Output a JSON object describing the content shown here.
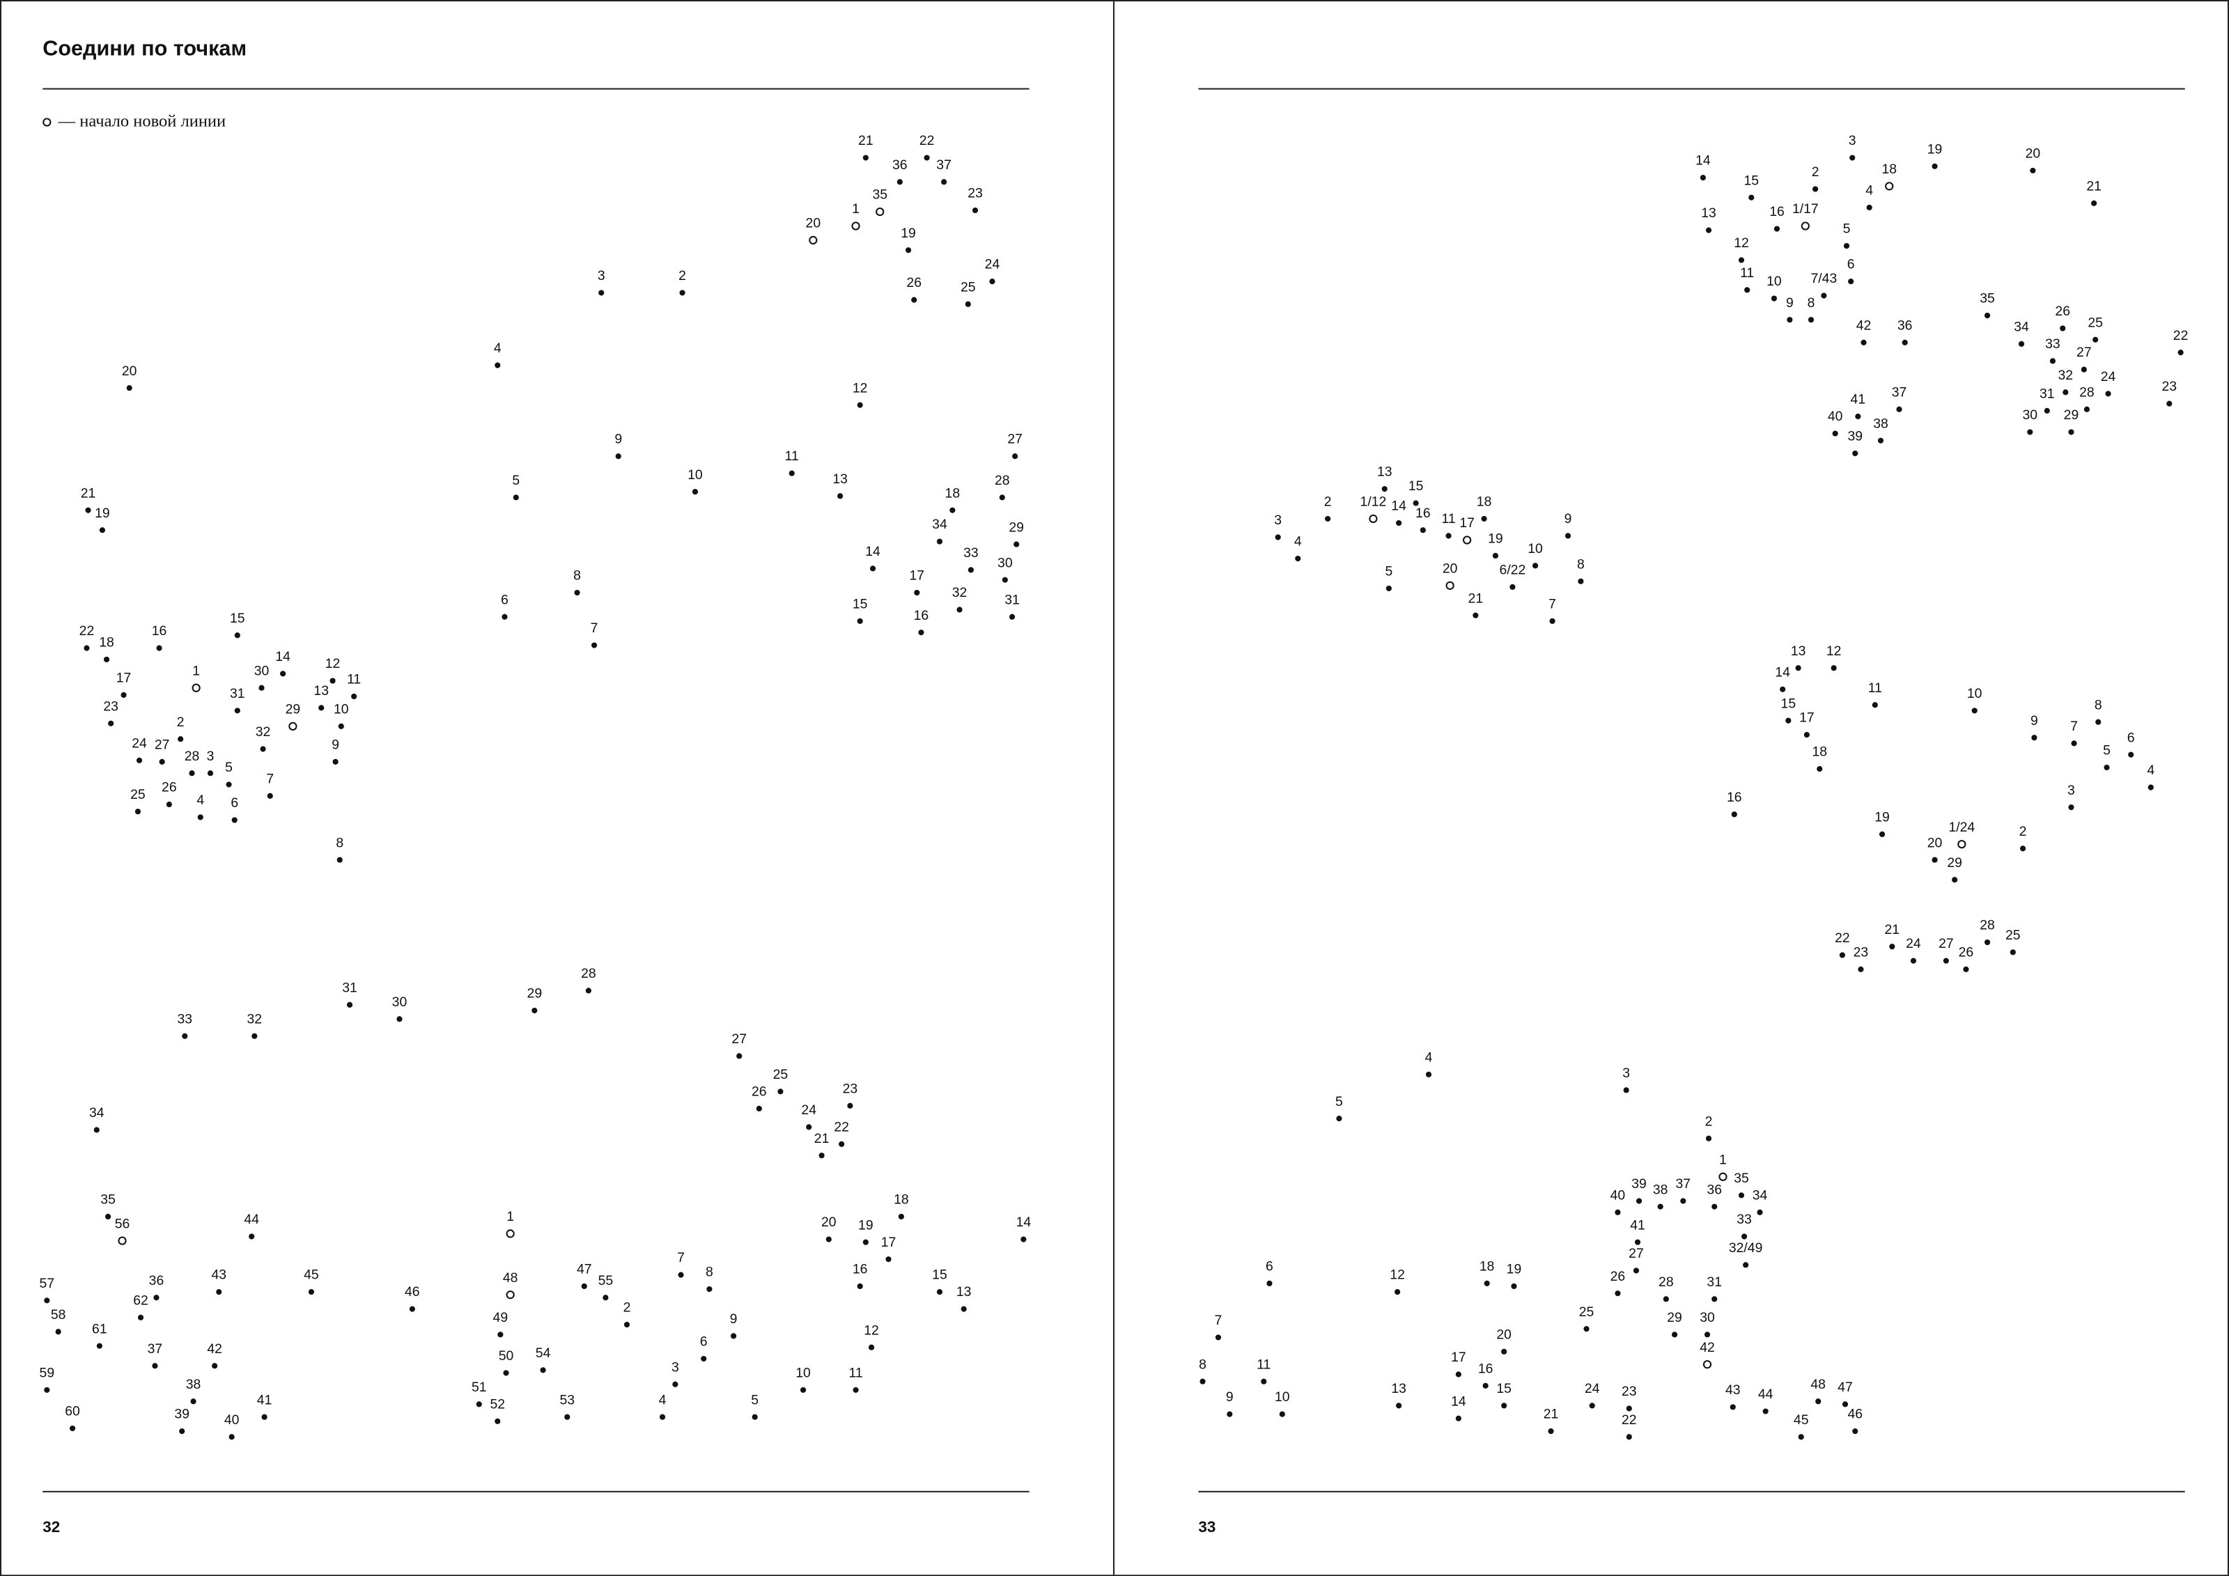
{
  "title": "Соедини по точкам",
  "legend": {
    "icon": "open-circle-icon",
    "text": "— начало новой линии"
  },
  "pages": {
    "left": "32",
    "right": "33"
  },
  "figures": [
    {
      "dots": [
        "21",
        "22",
        "36",
        "37",
        "35",
        "1",
        "20",
        "23",
        "19",
        "26",
        "25",
        "24",
        "3",
        "2",
        "4",
        "9",
        "10",
        "11",
        "5",
        "12",
        "13",
        "8",
        "6",
        "7",
        "14",
        "15",
        "16",
        "17",
        "18",
        "34",
        "33",
        "32",
        "27",
        "28",
        "29",
        "30",
        "31"
      ]
    },
    {
      "dots": [
        "20",
        "21",
        "19",
        "22",
        "18",
        "16",
        "15",
        "17",
        "1",
        "30",
        "14",
        "12",
        "11",
        "13",
        "31",
        "29",
        "10",
        "23",
        "2",
        "32",
        "9",
        "24",
        "27",
        "28",
        "3",
        "5",
        "7",
        "25",
        "26",
        "4",
        "6",
        "8"
      ]
    },
    {
      "dots": [
        "33",
        "32",
        "31",
        "30",
        "29",
        "28",
        "34",
        "35",
        "56",
        "44",
        "57",
        "36",
        "43",
        "45",
        "46",
        "62",
        "58",
        "61",
        "37",
        "42",
        "59",
        "38",
        "41",
        "60",
        "39",
        "40"
      ]
    },
    {
      "dots": [
        "27",
        "25",
        "26",
        "23",
        "24",
        "22",
        "21",
        "1",
        "20",
        "19",
        "18",
        "17",
        "14",
        "48",
        "47",
        "55",
        "16",
        "15",
        "13",
        "2",
        "49",
        "7",
        "8",
        "9",
        "12",
        "50",
        "54",
        "6",
        "3",
        "10",
        "11",
        "51",
        "52",
        "53",
        "4",
        "5"
      ]
    },
    {
      "dots": [
        "14",
        "3",
        "19",
        "20",
        "15",
        "2",
        "18",
        "21",
        "4",
        "16",
        "1/17",
        "13",
        "5",
        "12",
        "6",
        "11",
        "10",
        "7/43",
        "9",
        "8",
        "42",
        "36",
        "35",
        "26",
        "25",
        "34",
        "33",
        "22",
        "27",
        "32",
        "24",
        "23",
        "31",
        "28",
        "41",
        "37",
        "40",
        "38",
        "39",
        "30",
        "29"
      ]
    },
    {
      "dots": [
        "13",
        "15",
        "2",
        "1/12",
        "14",
        "16",
        "11",
        "17",
        "18",
        "3",
        "19",
        "9",
        "4",
        "10",
        "8",
        "5",
        "20",
        "6/22",
        "21",
        "7"
      ]
    },
    {
      "dots": [
        "13",
        "12",
        "14",
        "11",
        "10",
        "15",
        "17",
        "8",
        "9",
        "7",
        "6",
        "5",
        "18",
        "4",
        "3",
        "16",
        "19",
        "1/24",
        "2",
        "20",
        "29",
        "21",
        "28",
        "25",
        "22",
        "24",
        "27",
        "23",
        "26"
      ]
    },
    {
      "dots": [
        "4",
        "3",
        "5",
        "2",
        "1",
        "35",
        "34",
        "40",
        "39",
        "38",
        "37",
        "36",
        "41",
        "33",
        "32/49",
        "27",
        "6",
        "12",
        "18",
        "19",
        "26",
        "28",
        "31",
        "25",
        "29",
        "30",
        "7",
        "20",
        "42",
        "17",
        "16",
        "8",
        "11",
        "13",
        "15",
        "24",
        "23",
        "43",
        "44",
        "48",
        "47",
        "9",
        "10",
        "14",
        "21",
        "22",
        "45",
        "46"
      ]
    }
  ]
}
